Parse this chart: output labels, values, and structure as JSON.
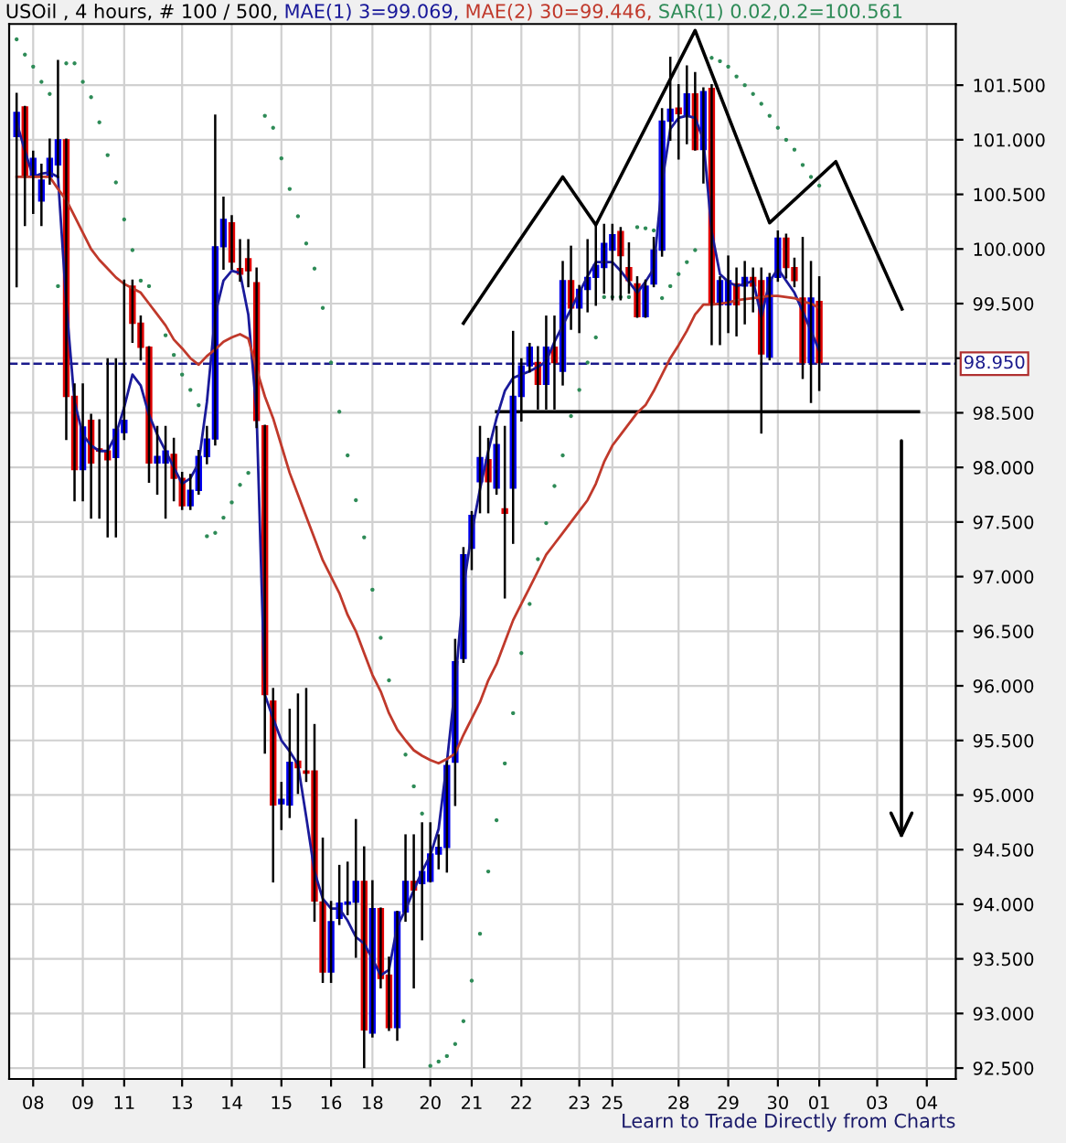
{
  "chart_data": {
    "type": "candlestick",
    "title": "USOil , 4 hours, # 100 / 500,",
    "legend": "top",
    "categories": [
      null,
      null,
      "08",
      null,
      null,
      null,
      null,
      null,
      "09",
      null,
      null,
      null,
      null,
      "11",
      null,
      null,
      null,
      null,
      null,
      null,
      "13",
      null,
      null,
      null,
      null,
      null,
      "14",
      null,
      null,
      null,
      null,
      null,
      "15",
      null,
      null,
      null,
      null,
      null,
      "16",
      null,
      null,
      null,
      null,
      "18",
      null,
      null,
      null,
      null,
      null,
      null,
      "20",
      null,
      null,
      null,
      null,
      "21",
      null,
      null,
      null,
      null,
      null,
      "22",
      null,
      null,
      null,
      null,
      null,
      null,
      "23",
      null,
      null,
      null,
      "25",
      null,
      null,
      null,
      null,
      null,
      null,
      null,
      "28",
      null,
      null,
      null,
      null,
      null,
      "29",
      null,
      null,
      null,
      null,
      null,
      "30",
      null,
      null,
      null,
      null,
      "01",
      null,
      null,
      null,
      null,
      null,
      null,
      "03",
      null,
      null,
      null,
      null,
      null,
      "04",
      null,
      null,
      null
    ],
    "ylim": [
      92.4,
      102.06
    ],
    "yticks": [
      {
        "value": 92.5,
        "label": "92.500"
      },
      {
        "value": 93.0,
        "label": "93.000"
      },
      {
        "value": 93.5,
        "label": "93.500"
      },
      {
        "value": 94.0,
        "label": "94.000"
      },
      {
        "value": 94.5,
        "label": "94.500"
      },
      {
        "value": 95.0,
        "label": "95.000"
      },
      {
        "value": 95.5,
        "label": "95.500"
      },
      {
        "value": 96.0,
        "label": "96.000"
      },
      {
        "value": 96.5,
        "label": "96.500"
      },
      {
        "value": 97.0,
        "label": "97.000"
      },
      {
        "value": 97.5,
        "label": "97.500"
      },
      {
        "value": 98.0,
        "label": "98.000"
      },
      {
        "value": 98.5,
        "label": "98.500"
      },
      {
        "value": 99.0,
        "label": null
      },
      {
        "value": 99.5,
        "label": "99.500"
      },
      {
        "value": 100.0,
        "label": "100.000"
      },
      {
        "value": 100.5,
        "label": "100.500"
      },
      {
        "value": 101.0,
        "label": "101.000"
      },
      {
        "value": 101.5,
        "label": "101.500"
      }
    ],
    "grid": true,
    "ref_lines": [
      {
        "axis": "y",
        "value": 98.95,
        "label": "98.950",
        "color": "#1a1a8c",
        "line_style": "dashed"
      }
    ],
    "annotations": [
      "Learn to Trade Directly from Charts"
    ],
    "series": [
      {
        "type": "line",
        "name": "MAE(1) 3=99.069,",
        "color": "#1a1a9a",
        "values": [
          101.16,
          100.9,
          100.66,
          100.69,
          100.7,
          100.66,
          99.5,
          98.6,
          98.3,
          98.2,
          98.15,
          98.15,
          98.3,
          98.55,
          98.85,
          98.75,
          98.48,
          98.3,
          98.15,
          98.0,
          97.85,
          97.9,
          98.04,
          98.6,
          99.4,
          99.71,
          99.8,
          99.78,
          99.4,
          98.5,
          95.92,
          95.7,
          95.5,
          95.4,
          95.28,
          94.8,
          94.3,
          94.05,
          93.96,
          93.96,
          93.85,
          93.7,
          93.64,
          93.5,
          93.35,
          93.4,
          93.8,
          93.95,
          94.13,
          94.3,
          94.45,
          94.69,
          95.3,
          96.0,
          96.9,
          97.4,
          97.8,
          98.15,
          98.45,
          98.7,
          98.82,
          98.85,
          98.88,
          98.92,
          98.97,
          99.15,
          99.3,
          99.45,
          99.6,
          99.75,
          99.88,
          99.88,
          99.88,
          99.8,
          99.7,
          99.6,
          99.7,
          99.82,
          100.6,
          101.1,
          101.2,
          101.22,
          101.2,
          101.0,
          100.16,
          99.77,
          99.7,
          99.66,
          99.68,
          99.71,
          99.38,
          99.7,
          99.82,
          99.71,
          99.6,
          99.43,
          99.25,
          99.07,
          null,
          null,
          null,
          null,
          null,
          null,
          null,
          null,
          null,
          null,
          null,
          null,
          null,
          null,
          null,
          null
        ]
      },
      {
        "type": "line",
        "name": "MAE(2) 30=99.446,",
        "color": "#c0392b",
        "values": [
          100.66,
          100.66,
          100.66,
          100.66,
          100.66,
          100.55,
          100.45,
          100.3,
          100.15,
          100.0,
          99.9,
          99.82,
          99.74,
          99.68,
          99.64,
          99.6,
          99.5,
          99.4,
          99.3,
          99.17,
          99.09,
          99.0,
          98.94,
          99.02,
          99.08,
          99.15,
          99.19,
          99.22,
          99.18,
          98.9,
          98.65,
          98.45,
          98.2,
          97.95,
          97.75,
          97.55,
          97.35,
          97.15,
          97.0,
          96.85,
          96.65,
          96.5,
          96.3,
          96.1,
          95.95,
          95.75,
          95.6,
          95.5,
          95.41,
          95.36,
          95.32,
          95.29,
          95.33,
          95.38,
          95.55,
          95.7,
          95.85,
          96.05,
          96.2,
          96.4,
          96.6,
          96.75,
          96.9,
          97.05,
          97.2,
          97.3,
          97.4,
          97.5,
          97.6,
          97.7,
          97.85,
          98.05,
          98.2,
          98.3,
          98.4,
          98.5,
          98.57,
          98.7,
          98.85,
          99.0,
          99.12,
          99.25,
          99.4,
          99.49,
          99.49,
          99.5,
          99.51,
          99.53,
          99.54,
          99.55,
          99.56,
          99.57,
          99.57,
          99.56,
          99.55,
          99.52,
          99.5,
          99.46,
          null,
          null,
          null,
          null,
          null,
          null,
          null,
          null,
          null,
          null,
          null,
          null,
          null,
          null,
          null,
          null
        ]
      },
      {
        "type": "scatter",
        "name": "SAR(1) 0.02,0.2=100.561",
        "color": "#2e8b57",
        "values": [
          101.92,
          101.78,
          101.67,
          101.53,
          101.42,
          99.66,
          101.7,
          101.7,
          101.53,
          101.39,
          101.16,
          100.86,
          100.61,
          100.27,
          99.99,
          99.71,
          99.66,
          null,
          99.21,
          99.03,
          98.85,
          98.71,
          98.57,
          97.37,
          97.4,
          97.54,
          97.68,
          97.84,
          97.95,
          null,
          101.22,
          101.11,
          100.83,
          100.55,
          100.3,
          100.05,
          99.82,
          99.46,
          98.96,
          98.51,
          98.11,
          97.7,
          97.36,
          96.88,
          96.44,
          96.05,
          null,
          95.37,
          95.08,
          94.83,
          92.52,
          92.56,
          92.61,
          92.72,
          92.93,
          93.3,
          93.73,
          94.3,
          94.77,
          95.29,
          95.75,
          96.3,
          96.75,
          97.16,
          97.49,
          97.83,
          98.11,
          98.47,
          98.71,
          98.96,
          99.19,
          99.56,
          99.56,
          99.56,
          99.56,
          100.2,
          100.19,
          100.17,
          99.55,
          99.66,
          99.77,
          99.88,
          99.99,
          null,
          101.75,
          101.72,
          101.67,
          101.58,
          101.5,
          101.42,
          101.33,
          101.22,
          101.11,
          101.0,
          100.91,
          100.77,
          100.66,
          100.58,
          null,
          null,
          null,
          null,
          null,
          null,
          null,
          null,
          null,
          null,
          null,
          null,
          null,
          null,
          null,
          null
        ]
      },
      {
        "type": "line",
        "color": "#000000",
        "values": [
          null,
          null,
          null,
          null,
          null,
          null,
          null,
          null,
          null,
          null,
          null,
          null,
          null,
          null,
          null,
          null,
          null,
          null,
          null,
          null,
          null,
          null,
          null,
          null,
          null,
          null,
          null,
          null,
          null,
          null,
          null,
          null,
          null,
          null,
          null,
          null,
          null,
          null,
          null,
          null,
          null,
          null,
          null,
          null,
          null,
          null,
          null,
          null,
          null,
          null,
          null,
          null,
          null,
          null,
          99.32,
          null,
          null,
          null,
          99.77,
          null,
          null,
          null,
          null,
          null,
          null,
          null,
          100.66,
          null,
          null,
          null,
          100.22,
          null,
          null,
          null,
          null,
          null,
          null,
          null,
          null,
          null,
          null,
          null,
          102.0,
          null,
          null,
          null,
          null,
          null,
          null,
          null,
          null,
          100.24,
          null,
          null,
          null,
          null,
          null,
          null,
          null,
          100.8,
          null,
          null,
          null,
          null,
          null,
          null,
          null,
          99.45,
          null,
          null,
          null,
          null,
          null,
          null
        ]
      },
      {
        "type": "line",
        "color": "#000000",
        "values": [
          null,
          null,
          null,
          null,
          null,
          null,
          null,
          null,
          null,
          null,
          null,
          null,
          null,
          null,
          null,
          null,
          null,
          null,
          null,
          null,
          null,
          null,
          null,
          null,
          null,
          null,
          null,
          null,
          null,
          null,
          null,
          null,
          null,
          null,
          null,
          null,
          null,
          null,
          null,
          null,
          null,
          null,
          null,
          null,
          null,
          null,
          null,
          null,
          null,
          null,
          null,
          null,
          null,
          null,
          null,
          null,
          null,
          null,
          98.51,
          null,
          null,
          null,
          null,
          null,
          null,
          null,
          null,
          null,
          null,
          null,
          null,
          null,
          null,
          null,
          null,
          null,
          null,
          null,
          null,
          null,
          null,
          null,
          null,
          null,
          null,
          null,
          null,
          null,
          null,
          null,
          null,
          null,
          null,
          null,
          null,
          null,
          null,
          null,
          null,
          null,
          null,
          null,
          null,
          null,
          null,
          null,
          null,
          null,
          null,
          98.51,
          null,
          null,
          null,
          null
        ]
      },
      {
        "color": "#0000ee",
        "ohlc": [
          [
            101.03,
            101.42,
            99.66,
            101.25
          ],
          null,
          [
            100.66,
            100.89,
            100.33,
            100.83
          ],
          [
            100.44,
            100.77,
            100.22,
            100.63
          ],
          [
            100.66,
            101.0,
            100.6,
            100.83
          ],
          [
            100.77,
            101.72,
            100.66,
            101.0
          ],
          null,
          null,
          [
            97.98,
            98.76,
            97.7,
            98.37
          ],
          null,
          null,
          null,
          [
            98.09,
            98.99,
            97.37,
            98.35
          ],
          [
            98.32,
            99.71,
            98.26,
            98.43
          ],
          null,
          null,
          null,
          [
            98.04,
            98.37,
            97.76,
            98.1
          ],
          [
            98.04,
            98.37,
            97.54,
            98.15
          ],
          null,
          null,
          [
            97.65,
            97.93,
            97.62,
            97.79
          ],
          [
            97.79,
            98.15,
            97.76,
            98.1
          ],
          [
            98.1,
            98.37,
            98.04,
            98.26
          ],
          [
            98.26,
            101.22,
            98.21,
            100.02
          ],
          [
            100.02,
            100.47,
            99.82,
            100.27
          ],
          null,
          null,
          null,
          null,
          null,
          null,
          [
            94.92,
            95.11,
            94.69,
            94.96
          ],
          [
            94.91,
            95.78,
            94.8,
            95.3
          ],
          null,
          null,
          null,
          null,
          [
            93.38,
            94.02,
            93.29,
            93.84
          ],
          [
            93.87,
            94.35,
            93.82,
            94.01
          ],
          [
            94.0,
            94.38,
            93.91,
            94.02
          ],
          [
            94.02,
            94.77,
            93.52,
            94.21
          ],
          null,
          [
            92.82,
            94.21,
            92.79,
            93.96
          ],
          null,
          null,
          [
            92.87,
            93.93,
            92.76,
            93.93
          ],
          [
            93.93,
            94.63,
            93.85,
            94.21
          ],
          null,
          [
            94.19,
            94.74,
            93.68,
            94.3
          ],
          [
            94.21,
            94.74,
            94.21,
            94.46
          ],
          [
            94.46,
            94.63,
            94.33,
            94.52
          ],
          [
            94.52,
            95.3,
            94.3,
            95.27
          ],
          [
            95.3,
            96.42,
            94.91,
            96.22
          ],
          [
            96.25,
            97.26,
            96.22,
            97.2
          ],
          [
            97.26,
            97.59,
            97.07,
            97.56
          ],
          [
            97.87,
            98.37,
            97.59,
            98.09
          ],
          null,
          [
            97.81,
            98.37,
            97.76,
            98.21
          ],
          null,
          [
            97.81,
            99.24,
            97.31,
            98.65
          ],
          [
            98.65,
            98.99,
            98.43,
            98.93
          ],
          [
            98.93,
            99.13,
            98.88,
            99.1
          ],
          null,
          [
            98.76,
            99.38,
            98.54,
            99.1
          ],
          null,
          [
            98.88,
            99.88,
            98.76,
            99.71
          ],
          null,
          [
            99.46,
            99.66,
            99.24,
            99.63
          ],
          [
            99.63,
            100.08,
            99.43,
            99.74
          ],
          [
            99.74,
            100.22,
            99.49,
            99.85
          ],
          [
            99.83,
            100.22,
            99.6,
            100.05
          ],
          [
            99.99,
            100.22,
            99.54,
            100.13
          ],
          null,
          null,
          null,
          [
            99.38,
            99.71,
            99.38,
            99.66
          ],
          [
            99.68,
            100.1,
            99.66,
            99.99
          ],
          [
            99.99,
            101.28,
            99.94,
            101.17
          ],
          [
            101.17,
            101.75,
            101.0,
            101.28
          ],
          null,
          [
            101.22,
            101.67,
            100.97,
            101.42
          ],
          null,
          [
            100.91,
            101.47,
            100.61,
            101.44
          ],
          null,
          [
            99.49,
            99.74,
            99.13,
            99.71
          ],
          [
            99.49,
            99.93,
            99.24,
            99.71
          ],
          null,
          [
            99.66,
            99.88,
            99.32,
            99.74
          ],
          null,
          null,
          [
            99.01,
            99.77,
            98.99,
            99.74
          ],
          [
            99.74,
            100.16,
            99.71,
            100.1
          ],
          null,
          null,
          null,
          [
            98.96,
            99.88,
            98.6,
            99.55
          ],
          null,
          null,
          null,
          null,
          null,
          null,
          null,
          null,
          null,
          null,
          null,
          null,
          null,
          null,
          null,
          null,
          null
        ]
      },
      {
        "color": "#e00000",
        "ohlc": [
          null,
          [
            101.3,
            101.3,
            100.22,
            100.66
          ],
          null,
          null,
          null,
          null,
          [
            101.0,
            101.0,
            98.26,
            98.65
          ],
          [
            98.65,
            98.76,
            97.7,
            97.98
          ],
          null,
          [
            98.43,
            98.48,
            97.54,
            98.04
          ],
          [
            98.17,
            98.43,
            97.54,
            98.15
          ],
          [
            98.15,
            98.99,
            97.37,
            98.07
          ],
          null,
          null,
          [
            99.66,
            99.71,
            99.15,
            99.32
          ],
          [
            99.32,
            99.38,
            98.99,
            99.1
          ],
          [
            99.1,
            99.1,
            97.87,
            98.04
          ],
          null,
          null,
          [
            98.12,
            98.26,
            97.7,
            97.9
          ],
          [
            97.9,
            97.95,
            97.62,
            97.65
          ],
          null,
          null,
          null,
          null,
          null,
          [
            100.24,
            100.3,
            99.82,
            99.88
          ],
          [
            99.82,
            100.08,
            99.71,
            99.77
          ],
          [
            99.91,
            100.08,
            99.66,
            99.8
          ],
          [
            99.69,
            99.82,
            98.37,
            98.43
          ],
          [
            98.38,
            98.38,
            95.39,
            95.92
          ],
          [
            95.86,
            95.97,
            94.21,
            94.91
          ],
          null,
          null,
          [
            95.31,
            95.92,
            95.02,
            95.25
          ],
          [
            95.22,
            95.97,
            95.13,
            95.2
          ],
          [
            95.22,
            95.64,
            93.85,
            94.03
          ],
          [
            94.02,
            94.6,
            93.29,
            93.38
          ],
          null,
          null,
          null,
          null,
          [
            94.21,
            94.52,
            92.51,
            92.85
          ],
          null,
          [
            93.96,
            93.96,
            93.24,
            93.32
          ],
          [
            93.35,
            93.51,
            92.85,
            92.87
          ],
          null,
          null,
          [
            94.21,
            94.63,
            93.24,
            94.13
          ],
          null,
          null,
          null,
          null,
          null,
          null,
          null,
          null,
          [
            98.07,
            98.26,
            97.59,
            97.87
          ],
          null,
          [
            97.62,
            98.37,
            96.81,
            97.58
          ],
          null,
          null,
          null,
          [
            98.96,
            99.1,
            98.54,
            98.76
          ],
          null,
          [
            99.1,
            99.38,
            98.54,
            98.96
          ],
          null,
          [
            99.71,
            100.02,
            99.27,
            99.46
          ],
          null,
          null,
          null,
          null,
          null,
          [
            100.16,
            100.19,
            99.54,
            99.94
          ],
          [
            99.83,
            100.05,
            99.6,
            99.71
          ],
          [
            99.68,
            99.74,
            99.38,
            99.38
          ],
          null,
          null,
          null,
          null,
          [
            101.29,
            101.5,
            100.83,
            101.24
          ],
          null,
          [
            101.42,
            101.61,
            100.91,
            100.91
          ],
          null,
          [
            101.47,
            101.5,
            99.13,
            99.49
          ],
          null,
          null,
          [
            99.68,
            99.82,
            99.21,
            99.49
          ],
          null,
          [
            99.74,
            99.82,
            99.43,
            99.66
          ],
          [
            99.71,
            99.82,
            98.32,
            99.04
          ],
          null,
          null,
          [
            100.1,
            100.13,
            99.74,
            99.83
          ],
          [
            99.83,
            99.91,
            99.66,
            99.71
          ],
          [
            99.55,
            100.1,
            98.82,
            98.96
          ],
          null,
          [
            99.52,
            99.74,
            98.71,
            98.96
          ],
          null,
          null,
          null,
          null,
          null,
          null,
          null,
          null,
          null,
          null,
          null,
          null,
          null,
          null,
          null,
          null
        ]
      }
    ]
  }
}
